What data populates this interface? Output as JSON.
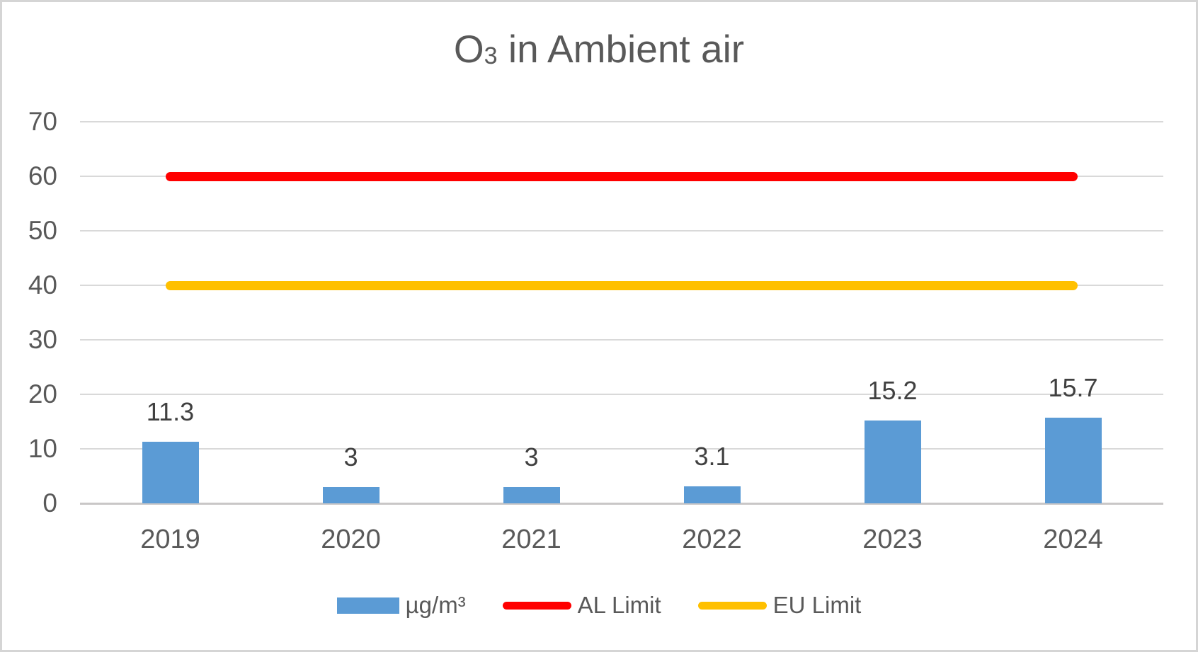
{
  "title": {
    "prefix": "O",
    "subscript": "3",
    "rest": " in Ambient air",
    "full_text": "O3 in Ambient air"
  },
  "chart_data": {
    "type": "bar",
    "title": "O3 in Ambient air",
    "categories": [
      "2019",
      "2020",
      "2021",
      "2022",
      "2023",
      "2024"
    ],
    "series": [
      {
        "name": "µg/m³",
        "type": "bar",
        "color": "#5B9BD5",
        "values": [
          11.3,
          3,
          3,
          3.1,
          15.2,
          15.7
        ],
        "labels": [
          "11.3",
          "3",
          "3",
          "3.1",
          "15.2",
          "15.7"
        ]
      },
      {
        "name": "AL Limit",
        "type": "line",
        "color": "#FF0000",
        "value": 60
      },
      {
        "name": "EU Limit",
        "type": "line",
        "color": "#FFC000",
        "value": 40
      }
    ],
    "y_axis": {
      "min": 0,
      "max": 70,
      "step": 10,
      "ticks": [
        "0",
        "10",
        "20",
        "30",
        "40",
        "50",
        "60",
        "70"
      ]
    },
    "x_axis": {
      "ticks": [
        "2019",
        "2020",
        "2021",
        "2022",
        "2023",
        "2024"
      ]
    },
    "grid": true,
    "legend_position": "bottom",
    "colors": {
      "bar": "#5B9BD5",
      "al_limit": "#FF0000",
      "eu_limit": "#FFC000",
      "gridline": "#D9D9D9",
      "axis_text": "#595959",
      "data_label": "#404040"
    }
  }
}
